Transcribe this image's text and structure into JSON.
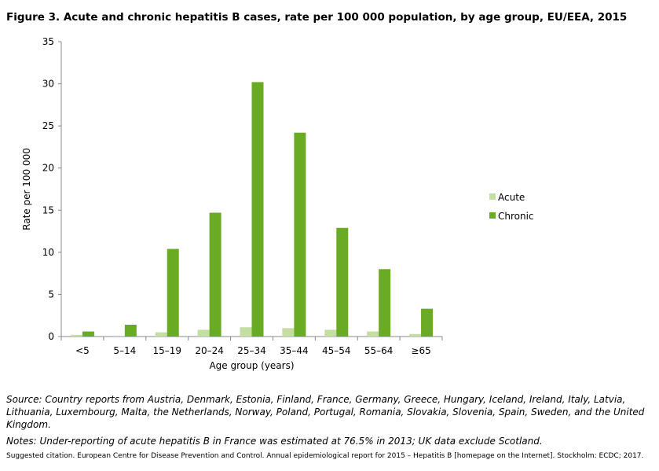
{
  "chart_data": {
    "type": "bar",
    "title": "Figure 3. Acute and chronic hepatitis B cases, rate per 100 000 population, by age group, EU/EEA, 2015",
    "xlabel": "Age group (years)",
    "ylabel": "Rate per 100 000",
    "ylim": [
      0,
      35
    ],
    "yticks": [
      0,
      5,
      10,
      15,
      20,
      25,
      30,
      35
    ],
    "grid": false,
    "legend_position": "right",
    "categories": [
      "<5",
      "5–14",
      "15–19",
      "20–24",
      "25–34",
      "35–44",
      "45–54",
      "55–64",
      "≥65"
    ],
    "series": [
      {
        "name": "Acute",
        "color": "#c3dea0",
        "values": [
          0.2,
          0.1,
          0.5,
          0.8,
          1.1,
          1.0,
          0.8,
          0.6,
          0.3
        ]
      },
      {
        "name": "Chronic",
        "color": "#6aab24",
        "values": [
          0.6,
          1.4,
          10.4,
          14.7,
          30.2,
          24.2,
          12.9,
          8.0,
          3.3
        ]
      }
    ]
  },
  "source": "Source: Country reports from Austria, Denmark, Estonia, Finland, France, Germany, Greece, Hungary, Iceland, Ireland, Italy, Latvia, Lithuania, Luxembourg, Malta, the Netherlands, Norway, Poland, Portugal, Romania, Slovakia, Slovenia, Spain, Sweden, and the United Kingdom.",
  "notes": "Notes: Under-reporting of acute hepatitis B in France was estimated at 76.5% in 2013; UK data exclude Scotland.",
  "citation": "Suggested citation. European Centre for Disease Prevention and Control. Annual epidemiological report for 2015 – Hepatitis B [homepage on the Internet]. Stockholm: ECDC; 2017."
}
